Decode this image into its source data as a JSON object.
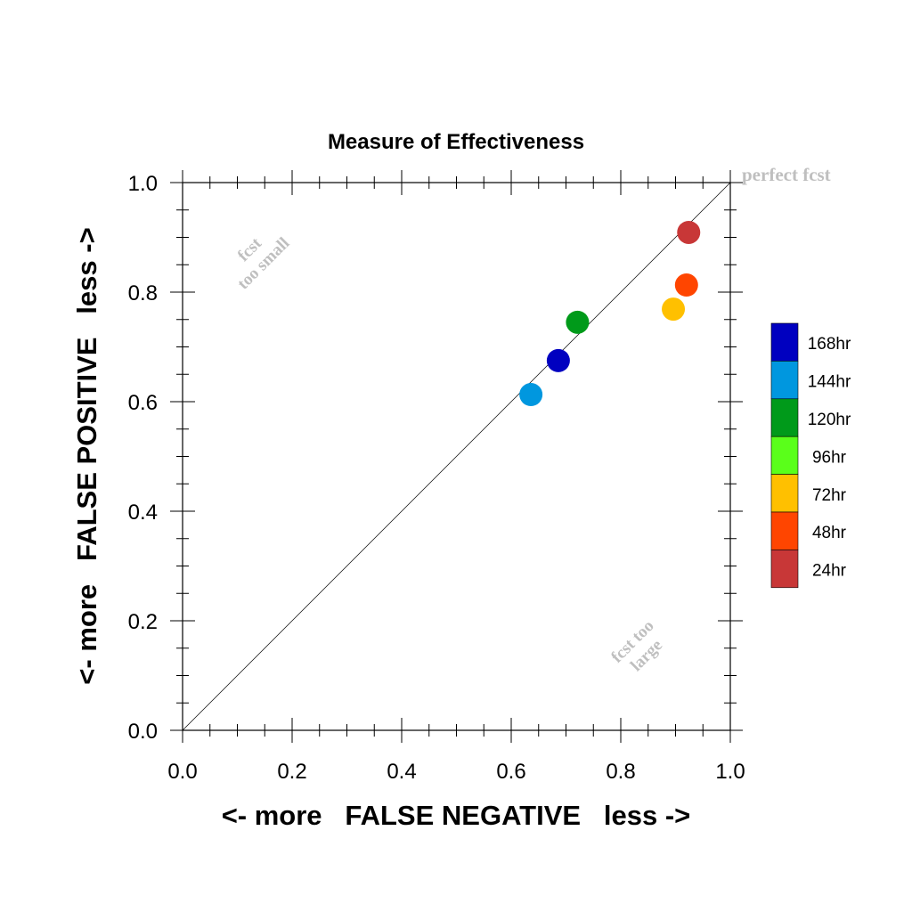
{
  "chart_data": {
    "type": "scatter",
    "title": "Measure of Effectiveness",
    "xlabel": "<- more   FALSE NEGATIVE   less ->",
    "ylabel": "<- more   FALSE POSITIVE   less ->",
    "xlim": [
      0.0,
      1.0
    ],
    "ylim": [
      0.0,
      1.0
    ],
    "xticks": [
      "0.0",
      "0.2",
      "0.4",
      "0.6",
      "0.8",
      "1.0"
    ],
    "yticks": [
      "0.0",
      "0.2",
      "0.4",
      "0.6",
      "0.8",
      "1.0"
    ],
    "grid": false,
    "diagonal_line": true,
    "annotations": {
      "perfect": "perfect fcst",
      "too_small": [
        "fcst",
        "too small"
      ],
      "too_large": [
        "fcst too",
        "large"
      ]
    },
    "legend_position": "right",
    "series": [
      {
        "name": "168hr",
        "color": "#0000c0",
        "x": 0.686,
        "y": 0.675
      },
      {
        "name": "144hr",
        "color": "#0097df",
        "x": 0.636,
        "y": 0.613
      },
      {
        "name": "120hr",
        "color": "#009a1a",
        "x": 0.721,
        "y": 0.745
      },
      {
        "name": "96hr",
        "color": "#5aff1a",
        "x": null,
        "y": null
      },
      {
        "name": "72hr",
        "color": "#ffc000",
        "x": 0.896,
        "y": 0.769
      },
      {
        "name": "48hr",
        "color": "#ff4500",
        "x": 0.92,
        "y": 0.813
      },
      {
        "name": "24hr",
        "color": "#c83737",
        "x": 0.924,
        "y": 0.909
      }
    ]
  }
}
